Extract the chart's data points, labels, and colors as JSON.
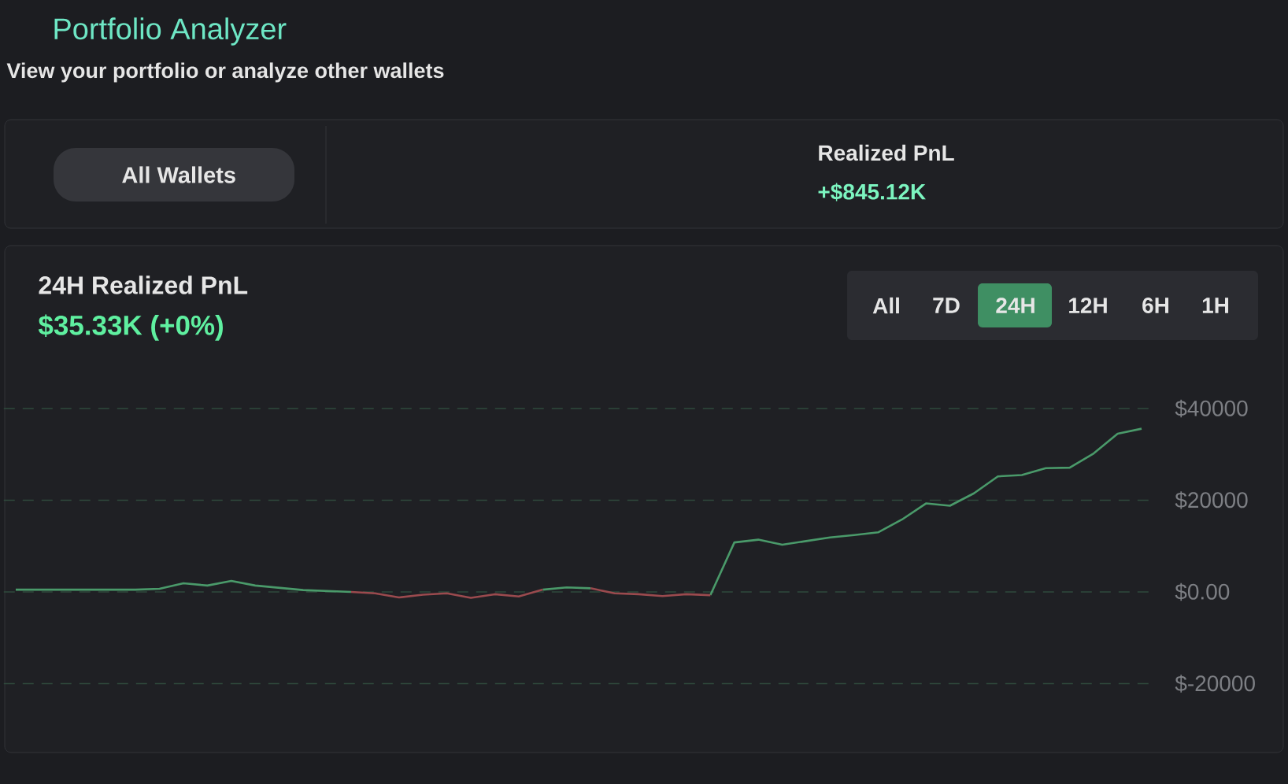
{
  "chart_data": {
    "type": "line",
    "title": "24H Realized PnL",
    "subtitle": "$35.33K (+0%)",
    "annotations": [
      "Portfolio Analyzer",
      "View your portfolio or analyze other wallets",
      "All Wallets",
      "Realized PnL",
      "+$845.12K",
      "All",
      "7D",
      "24H",
      "12H",
      "6H",
      "1H"
    ],
    "categories": [
      null,
      null,
      null,
      null,
      null,
      null,
      null,
      null,
      null,
      null,
      null,
      null,
      null,
      null,
      null,
      null,
      null,
      null,
      null,
      null,
      null,
      null,
      null,
      null,
      null,
      null,
      null,
      null,
      null,
      null,
      null,
      null,
      null,
      null,
      null,
      null,
      null,
      null,
      null,
      null,
      null,
      null,
      null,
      null,
      null,
      null,
      null,
      null
    ],
    "series": [
      {
        "color": "#4a9a6a",
        "values": [
          500,
          500,
          500,
          500,
          500,
          500,
          700,
          1900,
          1400,
          2400,
          1400,
          900,
          400,
          200,
          0,
          null,
          null,
          null,
          null,
          null,
          null,
          null,
          500,
          1000,
          800,
          null,
          null,
          null,
          null,
          -700,
          10800,
          11400,
          10300,
          11100,
          11900,
          12400,
          13000,
          15800,
          19300,
          18800,
          21500,
          25200,
          25500,
          27000,
          27100,
          30200,
          34500,
          35600
        ]
      },
      {
        "color": "#9a4a4e",
        "values": [
          null,
          null,
          null,
          null,
          null,
          null,
          null,
          null,
          null,
          null,
          null,
          null,
          null,
          null,
          0,
          -300,
          -1200,
          -600,
          -300,
          -1300,
          -500,
          -1000,
          500,
          null,
          800,
          -300,
          -500,
          -900,
          -500,
          -700,
          null,
          null,
          null,
          null,
          null,
          null,
          null,
          null,
          null,
          null,
          null,
          null,
          null,
          null,
          null,
          null,
          null,
          null
        ]
      }
    ],
    "ylim": [
      -20000,
      40000
    ],
    "yticks": [
      {
        "value": 40000,
        "label": "$40000"
      },
      {
        "value": 20000,
        "label": "$20000"
      },
      {
        "value": 0,
        "label": "$0.00"
      },
      {
        "value": -20000,
        "label": "$-20000"
      }
    ],
    "grid": "y",
    "line_style": "solid"
  }
}
